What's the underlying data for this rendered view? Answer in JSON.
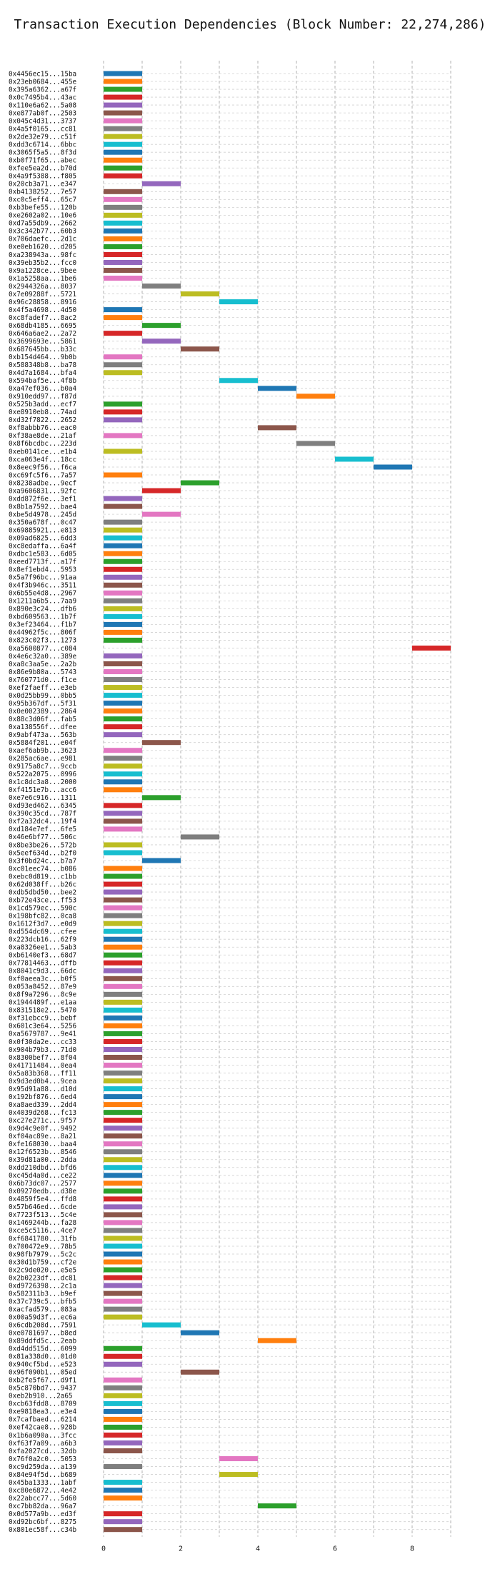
{
  "chart_data": {
    "type": "bar",
    "orientation": "horizontal",
    "title": "Transaction Execution Dependencies (Block Number: 22,274,286)",
    "xlabel": "",
    "ylabel": "",
    "xlim": [
      0,
      9
    ],
    "xticks": [
      "0",
      "2",
      "4",
      "6",
      "8"
    ],
    "grid": true,
    "palette": [
      "#1f77b4",
      "#ff7f0e",
      "#2ca02c",
      "#d62728",
      "#9467bd",
      "#8c564b",
      "#e377c2",
      "#7f7f7f",
      "#bcbd22",
      "#17becf"
    ],
    "transactions": [
      {
        "hash": "0x4456ec15...15ba",
        "start": 0,
        "end": 1
      },
      {
        "hash": "0x23eb0684...455e",
        "start": 0,
        "end": 1
      },
      {
        "hash": "0x395a6362...a67f",
        "start": 0,
        "end": 1
      },
      {
        "hash": "0x0c7495b4...43ac",
        "start": 0,
        "end": 1
      },
      {
        "hash": "0x110e6a62...5a08",
        "start": 0,
        "end": 1
      },
      {
        "hash": "0xe877ab0f...2503",
        "start": 0,
        "end": 1
      },
      {
        "hash": "0x045c4d31...3737",
        "start": 0,
        "end": 1
      },
      {
        "hash": "0x4a5f0165...cc81",
        "start": 0,
        "end": 1
      },
      {
        "hash": "0x2de32e79...c51f",
        "start": 0,
        "end": 1
      },
      {
        "hash": "0xdd3c6714...6bbc",
        "start": 0,
        "end": 1
      },
      {
        "hash": "0x3065f5a5...8f3d",
        "start": 0,
        "end": 1
      },
      {
        "hash": "0xb0f71f65...abec",
        "start": 0,
        "end": 1
      },
      {
        "hash": "0xfee5ea2d...b70d",
        "start": 0,
        "end": 1
      },
      {
        "hash": "0x4a9f5388...f805",
        "start": 0,
        "end": 1
      },
      {
        "hash": "0x20cb3a71...e347",
        "start": 1,
        "end": 2
      },
      {
        "hash": "0xb4138252...7e57",
        "start": 0,
        "end": 1
      },
      {
        "hash": "0xc0c5eff4...65c7",
        "start": 0,
        "end": 1
      },
      {
        "hash": "0xb3befe55...120b",
        "start": 0,
        "end": 1
      },
      {
        "hash": "0xe2602a02...10e6",
        "start": 0,
        "end": 1
      },
      {
        "hash": "0xd7a55db9...2662",
        "start": 0,
        "end": 1
      },
      {
        "hash": "0x3c342b77...60b3",
        "start": 0,
        "end": 1
      },
      {
        "hash": "0x706daefc...2d1c",
        "start": 0,
        "end": 1
      },
      {
        "hash": "0xe0eb1620...d205",
        "start": 0,
        "end": 1
      },
      {
        "hash": "0xa238943a...98fc",
        "start": 0,
        "end": 1
      },
      {
        "hash": "0x39eb35b2...fcc0",
        "start": 0,
        "end": 1
      },
      {
        "hash": "0x9a1228ce...9bee",
        "start": 0,
        "end": 1
      },
      {
        "hash": "0x1a5258aa...1be6",
        "start": 0,
        "end": 1
      },
      {
        "hash": "0x2944326a...8037",
        "start": 1,
        "end": 2
      },
      {
        "hash": "0x7e09288f...5721",
        "start": 2,
        "end": 3
      },
      {
        "hash": "0x96c28858...8916",
        "start": 3,
        "end": 4
      },
      {
        "hash": "0x4f5a4698...4d50",
        "start": 0,
        "end": 1
      },
      {
        "hash": "0xc8fadef7...8ac2",
        "start": 0,
        "end": 1
      },
      {
        "hash": "0x68db4185...6695",
        "start": 1,
        "end": 2
      },
      {
        "hash": "0x646a6ae2...2a72",
        "start": 0,
        "end": 1
      },
      {
        "hash": "0x3699693e...5861",
        "start": 1,
        "end": 2
      },
      {
        "hash": "0x687645bb...b33c",
        "start": 2,
        "end": 3
      },
      {
        "hash": "0xb154d464...9b0b",
        "start": 0,
        "end": 1
      },
      {
        "hash": "0x588348b8...ba78",
        "start": 0,
        "end": 1
      },
      {
        "hash": "0x4d7a1684...bfa4",
        "start": 0,
        "end": 1
      },
      {
        "hash": "0x594baf5e...4f8b",
        "start": 3,
        "end": 4
      },
      {
        "hash": "0xa47ef036...b0a4",
        "start": 4,
        "end": 5
      },
      {
        "hash": "0x910edd97...f87d",
        "start": 5,
        "end": 6
      },
      {
        "hash": "0x525b3add...ecf7",
        "start": 0,
        "end": 1
      },
      {
        "hash": "0xe8910eb8...74ad",
        "start": 0,
        "end": 1
      },
      {
        "hash": "0xd32f7822...2652",
        "start": 0,
        "end": 1
      },
      {
        "hash": "0xf8abbb76...eac0",
        "start": 4,
        "end": 5
      },
      {
        "hash": "0xf38ae8de...21af",
        "start": 0,
        "end": 1
      },
      {
        "hash": "0x8f6bcdbc...223d",
        "start": 5,
        "end": 6
      },
      {
        "hash": "0xeb0141ce...e1b4",
        "start": 0,
        "end": 1
      },
      {
        "hash": "0xca063e4f...18cc",
        "start": 6,
        "end": 7
      },
      {
        "hash": "0x8eec9f56...f6ca",
        "start": 7,
        "end": 8
      },
      {
        "hash": "0xc69fc5f6...7a57",
        "start": 0,
        "end": 1
      },
      {
        "hash": "0x8238adbe...9ecf",
        "start": 2,
        "end": 3
      },
      {
        "hash": "0xa9606831...92fc",
        "start": 1,
        "end": 2
      },
      {
        "hash": "0xdd872f6e...3ef1",
        "start": 0,
        "end": 1
      },
      {
        "hash": "0x8b1a7592...bae4",
        "start": 0,
        "end": 1
      },
      {
        "hash": "0xbe5d4978...245d",
        "start": 1,
        "end": 2
      },
      {
        "hash": "0x350a678f...0c47",
        "start": 0,
        "end": 1
      },
      {
        "hash": "0x69885921...e813",
        "start": 0,
        "end": 1
      },
      {
        "hash": "0x09ad6825...6dd3",
        "start": 0,
        "end": 1
      },
      {
        "hash": "0xc8edaffa...6a4f",
        "start": 0,
        "end": 1
      },
      {
        "hash": "0xdbc1e583...6d05",
        "start": 0,
        "end": 1
      },
      {
        "hash": "0xeed7713f...a17f",
        "start": 0,
        "end": 1
      },
      {
        "hash": "0x8ef1ebd4...5953",
        "start": 0,
        "end": 1
      },
      {
        "hash": "0x5a7f96bc...91aa",
        "start": 0,
        "end": 1
      },
      {
        "hash": "0x4f3b946c...3511",
        "start": 0,
        "end": 1
      },
      {
        "hash": "0x6b55e4d8...2967",
        "start": 0,
        "end": 1
      },
      {
        "hash": "0x1211a6b5...7aa9",
        "start": 0,
        "end": 1
      },
      {
        "hash": "0x890e3c24...dfb6",
        "start": 0,
        "end": 1
      },
      {
        "hash": "0xbd609563...1b7f",
        "start": 0,
        "end": 1
      },
      {
        "hash": "0x3ef23464...f1b7",
        "start": 0,
        "end": 1
      },
      {
        "hash": "0x44962f5c...806f",
        "start": 0,
        "end": 1
      },
      {
        "hash": "0x823c02f3...1273",
        "start": 0,
        "end": 1
      },
      {
        "hash": "0xa5600877...c084",
        "start": 8,
        "end": 9
      },
      {
        "hash": "0x4e6c32a0...389e",
        "start": 0,
        "end": 1
      },
      {
        "hash": "0xa8c3aa5e...2a2b",
        "start": 0,
        "end": 1
      },
      {
        "hash": "0x86e9b80a...5743",
        "start": 0,
        "end": 1
      },
      {
        "hash": "0x760771d0...f1ce",
        "start": 0,
        "end": 1
      },
      {
        "hash": "0xef2faeff...e3eb",
        "start": 0,
        "end": 1
      },
      {
        "hash": "0x0d25bb99...0bb5",
        "start": 0,
        "end": 1
      },
      {
        "hash": "0x95b367df...5f31",
        "start": 0,
        "end": 1
      },
      {
        "hash": "0x0e002389...2864",
        "start": 0,
        "end": 1
      },
      {
        "hash": "0x88c3d06f...fab5",
        "start": 0,
        "end": 1
      },
      {
        "hash": "0xa138556f...dfee",
        "start": 0,
        "end": 1
      },
      {
        "hash": "0x9abf473a...563b",
        "start": 0,
        "end": 1
      },
      {
        "hash": "0x5884f201...e04f",
        "start": 1,
        "end": 2
      },
      {
        "hash": "0xaef6ab9b...3623",
        "start": 0,
        "end": 1
      },
      {
        "hash": "0x285ac6ae...e981",
        "start": 0,
        "end": 1
      },
      {
        "hash": "0x9175a8c7...9ccb",
        "start": 0,
        "end": 1
      },
      {
        "hash": "0x522a2075...0996",
        "start": 0,
        "end": 1
      },
      {
        "hash": "0x1c8dc3a8...2000",
        "start": 0,
        "end": 1
      },
      {
        "hash": "0xf4151e7b...acc6",
        "start": 0,
        "end": 1
      },
      {
        "hash": "0xe7e6c916...1311",
        "start": 1,
        "end": 2
      },
      {
        "hash": "0xd93ed462...6345",
        "start": 0,
        "end": 1
      },
      {
        "hash": "0x390c35cd...787f",
        "start": 0,
        "end": 1
      },
      {
        "hash": "0xf2a32dc4...19f4",
        "start": 0,
        "end": 1
      },
      {
        "hash": "0xd184e7ef...6fe5",
        "start": 0,
        "end": 1
      },
      {
        "hash": "0x46e6bf77...506c",
        "start": 2,
        "end": 3
      },
      {
        "hash": "0x8be3be26...572b",
        "start": 0,
        "end": 1
      },
      {
        "hash": "0x5eef634d...b2f0",
        "start": 0,
        "end": 1
      },
      {
        "hash": "0x3f0bd24c...b7a7",
        "start": 1,
        "end": 2
      },
      {
        "hash": "0xc01eec74...b086",
        "start": 0,
        "end": 1
      },
      {
        "hash": "0xebc0d819...c1bb",
        "start": 0,
        "end": 1
      },
      {
        "hash": "0x62d038ff...b26c",
        "start": 0,
        "end": 1
      },
      {
        "hash": "0xdb5dbd50...bee2",
        "start": 0,
        "end": 1
      },
      {
        "hash": "0xb72e43ce...ff53",
        "start": 0,
        "end": 1
      },
      {
        "hash": "0x1cd579ec...590c",
        "start": 0,
        "end": 1
      },
      {
        "hash": "0x198bfc82...0ca8",
        "start": 0,
        "end": 1
      },
      {
        "hash": "0x1612f3d7...e0d9",
        "start": 0,
        "end": 1
      },
      {
        "hash": "0xd554dc69...cfee",
        "start": 0,
        "end": 1
      },
      {
        "hash": "0x223dcb16...62f9",
        "start": 0,
        "end": 1
      },
      {
        "hash": "0xa8326ee1...5ab3",
        "start": 0,
        "end": 1
      },
      {
        "hash": "0xb6140ef3...68d7",
        "start": 0,
        "end": 1
      },
      {
        "hash": "0x77814463...dffb",
        "start": 0,
        "end": 1
      },
      {
        "hash": "0x8041c9d3...66dc",
        "start": 0,
        "end": 1
      },
      {
        "hash": "0xf0aeea3c...b0f5",
        "start": 0,
        "end": 1
      },
      {
        "hash": "0x053a8452...87e9",
        "start": 0,
        "end": 1
      },
      {
        "hash": "0x8f9a7296...8c9e",
        "start": 0,
        "end": 1
      },
      {
        "hash": "0x1944489f...e1aa",
        "start": 0,
        "end": 1
      },
      {
        "hash": "0x831518e2...5470",
        "start": 0,
        "end": 1
      },
      {
        "hash": "0xf31ebcc9...bebf",
        "start": 0,
        "end": 1
      },
      {
        "hash": "0x601c3e64...5256",
        "start": 0,
        "end": 1
      },
      {
        "hash": "0xa5679787...9e41",
        "start": 0,
        "end": 1
      },
      {
        "hash": "0x0f30da2e...cc33",
        "start": 0,
        "end": 1
      },
      {
        "hash": "0x904b79b3...71d0",
        "start": 0,
        "end": 1
      },
      {
        "hash": "0x8300bef7...8f04",
        "start": 0,
        "end": 1
      },
      {
        "hash": "0x41711484...0ea4",
        "start": 0,
        "end": 1
      },
      {
        "hash": "0x5a83b368...ff11",
        "start": 0,
        "end": 1
      },
      {
        "hash": "0x9d3ed0b4...9cea",
        "start": 0,
        "end": 1
      },
      {
        "hash": "0x95d91a88...d10d",
        "start": 0,
        "end": 1
      },
      {
        "hash": "0x192bf876...6ed4",
        "start": 0,
        "end": 1
      },
      {
        "hash": "0xa8aed339...2dd4",
        "start": 0,
        "end": 1
      },
      {
        "hash": "0x4039d268...fc13",
        "start": 0,
        "end": 1
      },
      {
        "hash": "0xc27e271c...9f57",
        "start": 0,
        "end": 1
      },
      {
        "hash": "0x9d4c9e0f...9492",
        "start": 0,
        "end": 1
      },
      {
        "hash": "0xf04ac89e...8a21",
        "start": 0,
        "end": 1
      },
      {
        "hash": "0xfe168030...baa4",
        "start": 0,
        "end": 1
      },
      {
        "hash": "0x12f6523b...8546",
        "start": 0,
        "end": 1
      },
      {
        "hash": "0x39d81a00...2dda",
        "start": 0,
        "end": 1
      },
      {
        "hash": "0xdd210dbd...bfd6",
        "start": 0,
        "end": 1
      },
      {
        "hash": "0xc45d4a0d...ce22",
        "start": 0,
        "end": 1
      },
      {
        "hash": "0x6b73dc07...2577",
        "start": 0,
        "end": 1
      },
      {
        "hash": "0x09270edb...d38e",
        "start": 0,
        "end": 1
      },
      {
        "hash": "0x4859f5e4...ffd8",
        "start": 0,
        "end": 1
      },
      {
        "hash": "0x57b646ed...6cde",
        "start": 0,
        "end": 1
      },
      {
        "hash": "0x7723f513...5c4e",
        "start": 0,
        "end": 1
      },
      {
        "hash": "0x1469244b...fa28",
        "start": 0,
        "end": 1
      },
      {
        "hash": "0xce5c5116...4ce7",
        "start": 0,
        "end": 1
      },
      {
        "hash": "0xf6841780...31fb",
        "start": 0,
        "end": 1
      },
      {
        "hash": "0x700472e9...78b5",
        "start": 0,
        "end": 1
      },
      {
        "hash": "0x98fb7979...5c2c",
        "start": 0,
        "end": 1
      },
      {
        "hash": "0x30d1b759...cf2e",
        "start": 0,
        "end": 1
      },
      {
        "hash": "0x2c9de020...e5e5",
        "start": 0,
        "end": 1
      },
      {
        "hash": "0x2b0223df...dc81",
        "start": 0,
        "end": 1
      },
      {
        "hash": "0xd9726398...2c1a",
        "start": 0,
        "end": 1
      },
      {
        "hash": "0x582311b3...b9ef",
        "start": 0,
        "end": 1
      },
      {
        "hash": "0x37c739c5...bfb5",
        "start": 0,
        "end": 1
      },
      {
        "hash": "0xacfad579...083a",
        "start": 0,
        "end": 1
      },
      {
        "hash": "0x00a59d3f...ec6a",
        "start": 0,
        "end": 1
      },
      {
        "hash": "0x6cdb208d...7591",
        "start": 1,
        "end": 2
      },
      {
        "hash": "0xe0781697...b8ed",
        "start": 2,
        "end": 3
      },
      {
        "hash": "0x89ddfd5c...2eab",
        "start": 4,
        "end": 5
      },
      {
        "hash": "0xd4dd515d...6099",
        "start": 0,
        "end": 1
      },
      {
        "hash": "0x81a338d0...01d0",
        "start": 0,
        "end": 1
      },
      {
        "hash": "0x940cf5bd...e523",
        "start": 0,
        "end": 1
      },
      {
        "hash": "0x96f090b1...05ed",
        "start": 2,
        "end": 3
      },
      {
        "hash": "0xb2fe5f67...d9f1",
        "start": 0,
        "end": 1
      },
      {
        "hash": "0x5c870bd7...9437",
        "start": 0,
        "end": 1
      },
      {
        "hash": "0xeb2b910...2a65",
        "start": 0,
        "end": 1
      },
      {
        "hash": "0xcb63fdd8...8709",
        "start": 0,
        "end": 1
      },
      {
        "hash": "0xe9818ea3...e3e4",
        "start": 0,
        "end": 1
      },
      {
        "hash": "0x7cafbaed...6214",
        "start": 0,
        "end": 1
      },
      {
        "hash": "0xef42cae8...928b",
        "start": 0,
        "end": 1
      },
      {
        "hash": "0x1b6a090a...3fcc",
        "start": 0,
        "end": 1
      },
      {
        "hash": "0xf63f7a09...a6b3",
        "start": 0,
        "end": 1
      },
      {
        "hash": "0xfa2027cd...32db",
        "start": 0,
        "end": 1
      },
      {
        "hash": "0x76f0a2c0...5053",
        "start": 3,
        "end": 4
      },
      {
        "hash": "0xc9d259da...a139",
        "start": 0,
        "end": 1
      },
      {
        "hash": "0x84e94f5d...b689",
        "start": 3,
        "end": 4
      },
      {
        "hash": "0x45ba1333...1abf",
        "start": 0,
        "end": 1
      },
      {
        "hash": "0xc80e6872...4e42",
        "start": 0,
        "end": 1
      },
      {
        "hash": "0x22abcc77...5d60",
        "start": 0,
        "end": 1
      },
      {
        "hash": "0xc7bb82da...96a7",
        "start": 4,
        "end": 5
      },
      {
        "hash": "0x0d577a9b...ed3f",
        "start": 0,
        "end": 1
      },
      {
        "hash": "0xd92bc6bf...8275",
        "start": 0,
        "end": 1
      },
      {
        "hash": "0x801ec58f...c34b",
        "start": 0,
        "end": 1
      }
    ]
  }
}
